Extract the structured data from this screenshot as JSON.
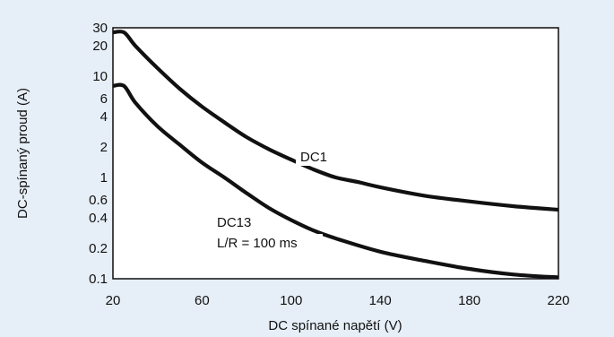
{
  "chart_data": {
    "type": "line",
    "xlabel": "DC spínané napětí (V)",
    "ylabel": "DC-spínaný proud (A)",
    "xlim": [
      20,
      220
    ],
    "ylim": [
      0.1,
      30
    ],
    "yscale": "log",
    "grid": true,
    "x_ticks": [
      "20",
      "60",
      "100",
      "140",
      "180",
      "220"
    ],
    "y_ticks": [
      "0.1",
      "0.2",
      "0.4",
      "0.6",
      "1",
      "2",
      "4",
      "6",
      "10",
      "20",
      "30"
    ],
    "series": [
      {
        "name": "DC1",
        "x": [
          20,
          25,
          30,
          40,
          50,
          60,
          70,
          80,
          90,
          100,
          110,
          120,
          130,
          140,
          160,
          180,
          200,
          220
        ],
        "y": [
          27,
          27,
          20,
          12,
          7.5,
          5,
          3.5,
          2.5,
          1.9,
          1.5,
          1.2,
          1.0,
          0.9,
          0.8,
          0.66,
          0.58,
          0.52,
          0.48
        ]
      },
      {
        "name": "DC13",
        "x": [
          20,
          25,
          30,
          40,
          50,
          60,
          70,
          80,
          90,
          100,
          110,
          120,
          140,
          160,
          180,
          200,
          220
        ],
        "y": [
          8,
          8,
          5.5,
          3.2,
          2.1,
          1.4,
          1.0,
          0.7,
          0.5,
          0.38,
          0.3,
          0.25,
          0.185,
          0.15,
          0.125,
          0.11,
          0.103
        ]
      }
    ],
    "annotations": [
      "DC1",
      "DC13",
      "L/R = 100 ms"
    ]
  }
}
